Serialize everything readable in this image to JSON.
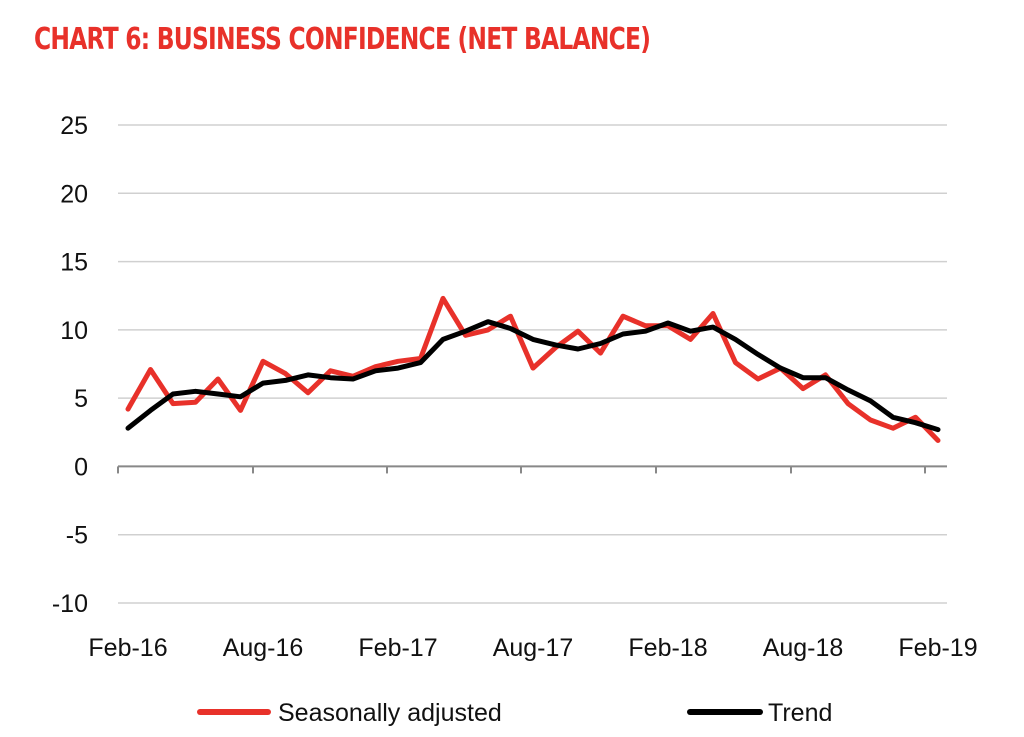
{
  "chart_data": {
    "type": "line",
    "title": "CHART 6: BUSINESS CONFIDENCE (NET BALANCE)",
    "xlabel": "",
    "ylabel": "",
    "ylim": [
      -10,
      25
    ],
    "yticks": [
      -10,
      -5,
      0,
      5,
      10,
      15,
      20,
      25
    ],
    "x_tick_labels": [
      "Feb-16",
      "Aug-16",
      "Feb-17",
      "Aug-17",
      "Feb-18",
      "Aug-18",
      "Feb-19"
    ],
    "grid": "horizontal",
    "legend_position": "bottom",
    "x": [
      "2016-02",
      "2016-03",
      "2016-04",
      "2016-05",
      "2016-06",
      "2016-07",
      "2016-08",
      "2016-09",
      "2016-10",
      "2016-11",
      "2016-12",
      "2017-01",
      "2017-02",
      "2017-03",
      "2017-04",
      "2017-05",
      "2017-06",
      "2017-07",
      "2017-08",
      "2017-09",
      "2017-10",
      "2017-11",
      "2017-12",
      "2018-01",
      "2018-02",
      "2018-03",
      "2018-04",
      "2018-05",
      "2018-06",
      "2018-07",
      "2018-08",
      "2018-09",
      "2018-10",
      "2018-11",
      "2018-12",
      "2019-01",
      "2019-02"
    ],
    "series": [
      {
        "name": "Seasonally adjusted",
        "color": "#e8312a",
        "values": [
          4.2,
          7.1,
          4.6,
          4.7,
          6.4,
          4.1,
          7.7,
          6.8,
          5.4,
          7.0,
          6.6,
          7.3,
          7.7,
          7.9,
          12.3,
          9.6,
          10.0,
          11.0,
          7.2,
          8.7,
          9.9,
          8.3,
          11.0,
          10.3,
          10.3,
          9.3,
          11.2,
          7.6,
          6.4,
          7.2,
          5.7,
          6.7,
          4.6,
          3.4,
          2.8,
          3.6,
          1.9
        ]
      },
      {
        "name": "Trend",
        "color": "#000000",
        "values": [
          2.8,
          4.1,
          5.3,
          5.5,
          5.3,
          5.1,
          6.1,
          6.3,
          6.7,
          6.5,
          6.4,
          7.0,
          7.2,
          7.6,
          9.3,
          9.9,
          10.6,
          10.1,
          9.3,
          8.9,
          8.6,
          9.0,
          9.7,
          9.9,
          10.5,
          9.9,
          10.2,
          9.3,
          8.2,
          7.2,
          6.5,
          6.5,
          5.6,
          4.8,
          3.6,
          3.2,
          2.7
        ]
      }
    ]
  }
}
